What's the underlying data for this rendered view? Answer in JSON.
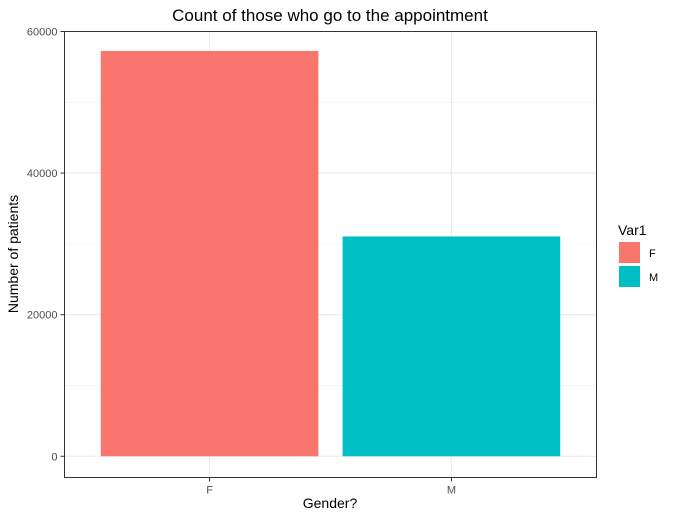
{
  "chart_data": {
    "type": "bar",
    "title": "Count of those who go to the appointment",
    "xlabel": "Gender?",
    "ylabel": "Number of patients",
    "categories": [
      "F",
      "M"
    ],
    "values": [
      57250,
      31050
    ],
    "colors": [
      "#F8766D",
      "#00BFC4"
    ],
    "ylim": [
      -3000,
      60000
    ],
    "yticks": [
      0,
      20000,
      40000,
      60000
    ],
    "grid": true,
    "legend": {
      "title": "Var1",
      "position": "right",
      "items": [
        {
          "label": "F",
          "color": "#F8766D"
        },
        {
          "label": "M",
          "color": "#00BFC4"
        }
      ]
    }
  }
}
